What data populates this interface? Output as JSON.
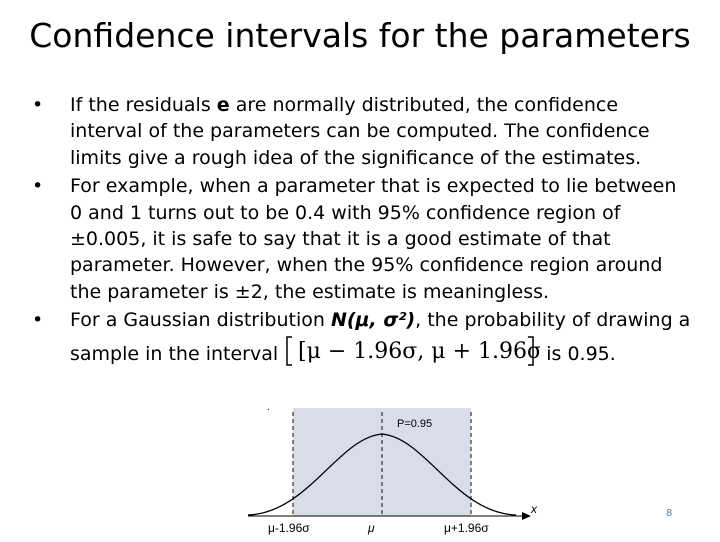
{
  "title": "Confidence intervals for the parameters",
  "bullets": {
    "b1": {
      "a": "If the residuals ",
      "e": "e",
      "b": " are normally distributed, the confidence interval of the parameters can be computed. The confidence limits give a rough idea of the significance of the estimates."
    },
    "b2": "For example, when a parameter that is expected to lie between 0 and 1 turns out to be 0.4 with 95% confidence region of  ±0.005, it is safe to say that it is a good estimate of that parameter. However, when the 95% confidence region around the parameter is ±2, the estimate is meaningless.",
    "b3": {
      "a": "For a Gaussian distribution ",
      "n": "N(μ, σ²)",
      "b": ", the probability of drawing a sample in the interval ",
      "interval": "[μ − 1.96σ, μ + 1.96σ]",
      "c": " is 0.95."
    }
  },
  "figure": {
    "p_label": "P=0.95",
    "x_axis_label": "x",
    "tick_left": "μ-1.96σ",
    "tick_mid": "μ",
    "tick_right": "μ+1.96σ",
    "dot_label": "."
  },
  "page_number": "8",
  "colors": {
    "shaded": "#d9dce9",
    "dash": "#333333"
  }
}
